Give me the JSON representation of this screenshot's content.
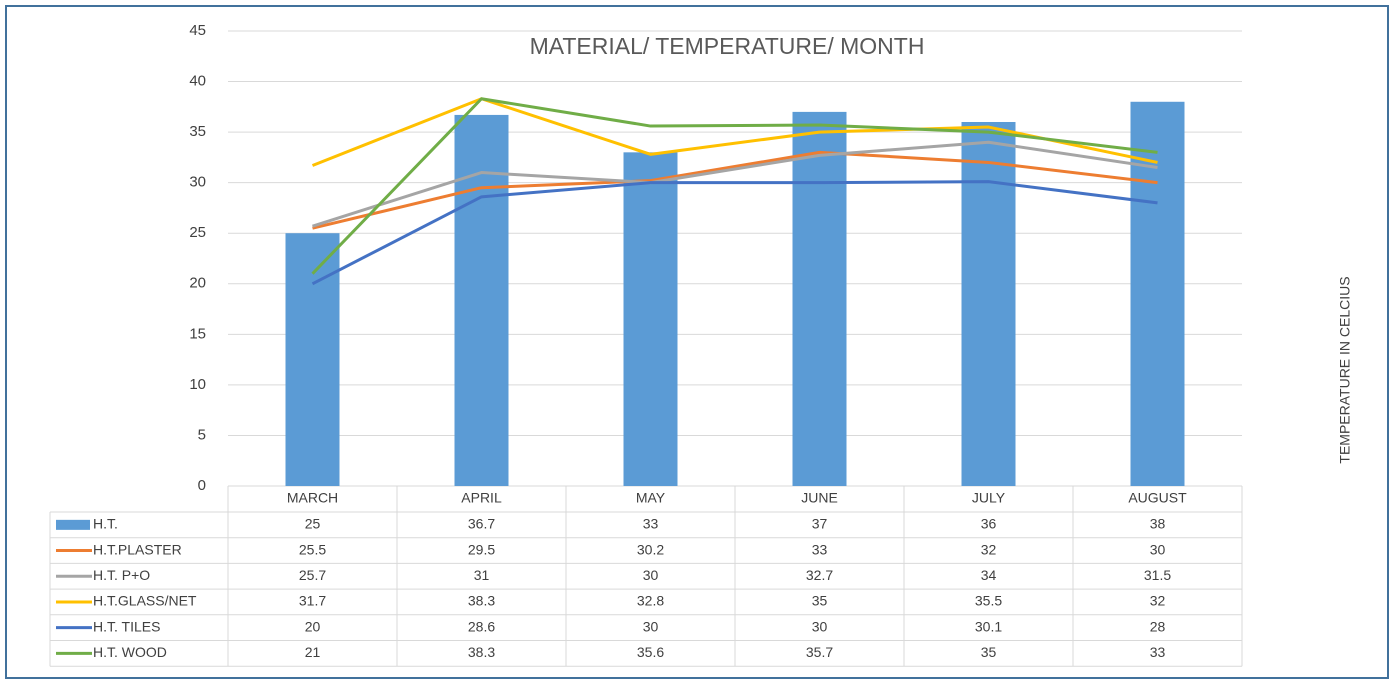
{
  "chart_data": {
    "type": "bar",
    "title": "MATERIAL/ TEMPERATURE/ MONTH",
    "y_label": "TEMPERATURE IN CELCIUS",
    "categories": [
      "MARCH",
      "APRIL",
      "MAY",
      "JUNE",
      "JULY",
      "AUGUST"
    ],
    "ylim": [
      0,
      45
    ],
    "yticks": [
      0,
      5,
      10,
      15,
      20,
      25,
      30,
      35,
      40,
      45
    ],
    "grid": true,
    "series": [
      {
        "name": "H.T.",
        "type": "bar",
        "color": "#5b9bd5",
        "values": [
          25,
          36.7,
          33,
          37,
          36,
          38
        ]
      },
      {
        "name": "H.T.PLASTER",
        "type": "line",
        "color": "#ed7d31",
        "values": [
          25.5,
          29.5,
          30.2,
          33,
          32,
          30
        ]
      },
      {
        "name": "H.T. P+O",
        "type": "line",
        "color": "#a5a5a5",
        "values": [
          25.7,
          31,
          30,
          32.7,
          34,
          31.5
        ]
      },
      {
        "name": "H.T.GLASS/NET",
        "type": "line",
        "color": "#ffc000",
        "values": [
          31.7,
          38.3,
          32.8,
          35,
          35.5,
          32
        ]
      },
      {
        "name": "H.T. TILES",
        "type": "line",
        "color": "#4472c4",
        "values": [
          20,
          28.6,
          30,
          30,
          30.1,
          28
        ]
      },
      {
        "name": "H.T. WOOD",
        "type": "line",
        "color": "#70ad47",
        "values": [
          21,
          38.3,
          35.6,
          35.7,
          35,
          33
        ]
      }
    ]
  }
}
